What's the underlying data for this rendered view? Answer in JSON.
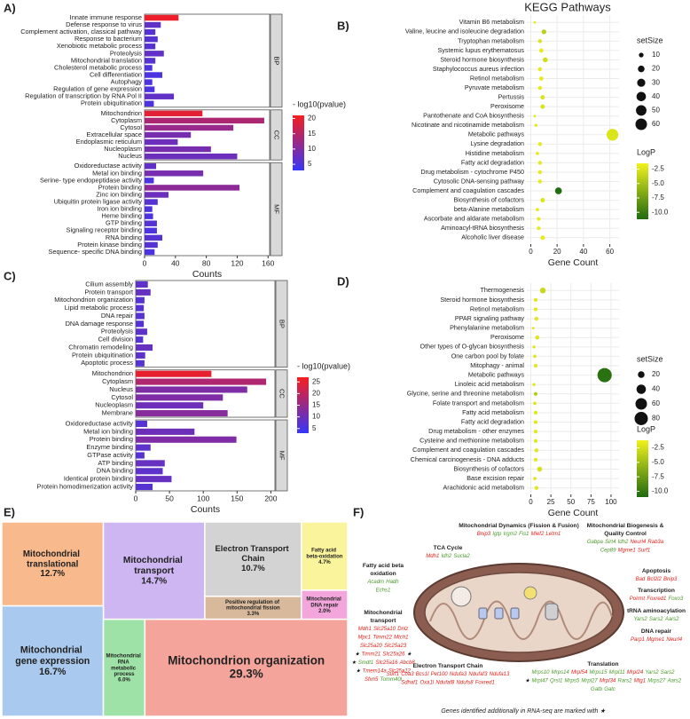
{
  "chart_data": [
    {
      "type": "faceted_bar",
      "panel_label": "A)",
      "xlabel": "Counts",
      "xlim": [
        0,
        162
      ],
      "xticks": [
        0,
        40,
        80,
        120,
        160
      ],
      "facets": [
        {
          "name": "BP",
          "categories": [
            "Innate immune response",
            "Defense response to virus",
            "Complement activation, classical pathway",
            "Response to bacterium",
            "Xenobiotic metabolic process",
            "Proteolysis",
            "Mitochondrial translation",
            "Cholesterol metabolic process",
            "Cell differentiation",
            "Autophagy",
            "Regulation of gene expression",
            "Regulation of transcription by RNA Pol II",
            "Protein ubiquitination"
          ],
          "values": [
            44,
            21,
            14,
            17,
            14,
            25,
            14,
            10,
            23,
            10,
            13,
            38,
            12
          ],
          "color_values": [
            20,
            7,
            6,
            6,
            6,
            7,
            6,
            5,
            5,
            5,
            5,
            7,
            5
          ]
        },
        {
          "name": "CC",
          "categories": [
            "Mitochondrion",
            "Cytoplasm",
            "Cytosol",
            "Extracellular space",
            "Endoplasmic reticulum",
            "Nucleoplasm",
            "Nucleus"
          ],
          "values": [
            75,
            155,
            115,
            60,
            43,
            86,
            120
          ],
          "color_values": [
            19,
            14,
            12,
            9,
            8,
            9,
            8
          ]
        },
        {
          "name": "MF",
          "categories": [
            "Oxidoreductase activity",
            "Metal ion binding",
            "Serine- type endopeptidase activity",
            "Protein binding",
            "Zinc ion binding",
            "Ubiquitin protein ligase activity",
            "Iron ion binding",
            "Heme binding",
            "GTP binding",
            "Signaling receptor binding",
            "RNA binding",
            "Protein kinase binding",
            "Sequence- specific DNA binding"
          ],
          "values": [
            15,
            76,
            12,
            123,
            31,
            17,
            10,
            11,
            16,
            16,
            23,
            17,
            13
          ],
          "color_values": [
            7,
            9,
            5,
            11,
            8,
            6,
            5,
            5,
            6,
            5,
            6,
            6,
            5
          ]
        }
      ],
      "colorbar": {
        "title": "- log10(pvalue)",
        "lim": [
          3,
          21
        ],
        "ticks": [
          5,
          10,
          15,
          20
        ],
        "colors": [
          "#3636f7",
          "#f71e1e"
        ]
      }
    },
    {
      "type": "dot",
      "panel_label": "B)",
      "title": "KEGG Pathways",
      "xlabel": "Gene Count",
      "xlim": [
        -3,
        67
      ],
      "xticks": [
        0,
        20,
        40,
        60
      ],
      "categories": [
        "Vitamin B6 metabolism",
        "Valine, leucine and isoleucine degradation",
        "Tryptophan metabolism",
        "Systemic lupus erythematosus",
        "Steroid hormone biosynthesis",
        "Staphylococcus aureus infection",
        "Retinol metabolism",
        "Pyruvate metabolism",
        "Pertussis",
        "Peroxisome",
        "Pantothenate and CoA biosynthesis",
        "Nicotinate and nicotinamide metabolism",
        "Metabolic pathways",
        "Lysine degradation",
        "Histidine metabolism",
        "Fatty acid degradation",
        "Drug metabolism - cytochrome P450",
        "Cytosolic DNA-sensing pathway",
        "Complement and coagulation cascades",
        "Biosynthesis of cofactors",
        "beta-Alanine metabolism",
        "Ascorbate and aldarate metabolism",
        "Aminoacyl-tRNA biosynthesis",
        "Alcoholic liver disease"
      ],
      "values": [
        3,
        10,
        7,
        8,
        11,
        7,
        8,
        7,
        9,
        9,
        3,
        4,
        62,
        7,
        5,
        7,
        7,
        7,
        21,
        9,
        5,
        6,
        6,
        9
      ],
      "logp": [
        -2,
        -4,
        -2.5,
        -2,
        -3,
        -2,
        -2,
        -2,
        -2.5,
        -2.5,
        -2,
        -2,
        -2.5,
        -2,
        -2,
        -2,
        -2,
        -2,
        -11,
        -2.5,
        -2,
        -2,
        -2,
        -2
      ],
      "size_legend": {
        "title": "setSize",
        "values": [
          10,
          20,
          30,
          40,
          50,
          60
        ]
      },
      "colorbar": {
        "title": "LogP",
        "lim": [
          -11.2,
          -1.5
        ],
        "ticks": [
          -2.5,
          {
            "value": -5,
            "label": "-5.0"
          },
          -7.5,
          {
            "value": -10,
            "label": "-10.0"
          }
        ],
        "colors": [
          "#1f6a10",
          "#f2f21c"
        ]
      }
    },
    {
      "type": "faceted_bar",
      "panel_label": "C)",
      "xlabel": "Counts",
      "xlim": [
        0,
        206
      ],
      "xticks": [
        0,
        50,
        100,
        150,
        200
      ],
      "facets": [
        {
          "name": "BP",
          "categories": [
            "Cilium assembly",
            "Protein transport",
            "Mitochondrion organization",
            "Lipid metabolic process",
            "DNA repair",
            "DNA damage response",
            "Proteolysis",
            "Cell division",
            "Chromatin remodeling",
            "Protein ubiquitination",
            "Apoptotic process"
          ],
          "values": [
            18,
            22,
            13,
            12,
            13,
            12,
            17,
            11,
            25,
            14,
            13
          ],
          "color_values": [
            8,
            9,
            7,
            7,
            7,
            7,
            8,
            7,
            9,
            8,
            7
          ]
        },
        {
          "name": "CC",
          "categories": [
            "Mitochondrion",
            "Cytoplasm",
            "Nucleus",
            "Cytosol",
            "Nucleoplasm",
            "Membrane"
          ],
          "values": [
            112,
            193,
            165,
            129,
            100,
            136
          ],
          "color_values": [
            25,
            18,
            12,
            12,
            10,
            13
          ]
        },
        {
          "name": "MF",
          "categories": [
            "Oxidoreductase activity",
            "Metal ion binding",
            "Protein binding",
            "Enzyme binding",
            "GTPase activity",
            "ATP binding",
            "DNA binding",
            "Identical protein binding",
            "Protein homodimerization activity"
          ],
          "values": [
            17,
            87,
            149,
            22,
            13,
            43,
            40,
            53,
            25
          ],
          "color_values": [
            7,
            10,
            12,
            8,
            7,
            9,
            8,
            9,
            7
          ]
        }
      ],
      "colorbar": {
        "title": "- log10(pvalue)",
        "lim": [
          3,
          27
        ],
        "ticks": [
          5,
          10,
          15,
          20,
          25
        ],
        "colors": [
          "#3636f7",
          "#f71e1e"
        ]
      }
    },
    {
      "type": "dot",
      "panel_label": "D)",
      "xlabel": "Gene Count",
      "xlim": [
        -5,
        110
      ],
      "xticks": [
        0,
        25,
        50,
        75,
        100
      ],
      "categories": [
        "Thermogenesis",
        "Steroid hormone biosynthesis",
        "Retinol metabolism",
        "PPAR signaling pathway",
        "Phenylalanine metabolism",
        "Peroxisome",
        "Other types of O-glycan biosynthesis",
        "One carbon pool by folate",
        "Mitophagy - animal",
        "Metabolic pathways",
        "Linoleic acid metabolism",
        "Glycine, serine and threonine metabolism",
        "Folate transport and metabolism",
        "Fatty acid metabolism",
        "Fatty acid degradation",
        "Drug metabolism - other enzymes",
        "Cysteine and methionine metabolism",
        "Complement and coagulation cascades",
        "Chemical carcinogenesis - DNA adducts",
        "Biosynthesis of cofactors",
        "Base excision repair",
        "Arachidonic acid metabolism"
      ],
      "values": [
        15,
        6,
        6,
        7,
        3,
        8,
        4,
        5,
        6,
        92,
        4,
        6,
        5,
        6,
        6,
        6,
        6,
        7,
        6,
        11,
        5,
        7
      ],
      "logp": [
        -3,
        -2,
        -2,
        -2,
        -2,
        -2,
        -2,
        -2,
        -2,
        -10.5,
        -2,
        -4,
        -2,
        -2,
        -2,
        -2,
        -2,
        -2,
        -2,
        -2.5,
        -2,
        -2
      ],
      "size_legend": {
        "title": "setSize",
        "values": [
          20,
          40,
          60,
          80
        ]
      },
      "colorbar": {
        "title": "LogP",
        "lim": [
          -11,
          -1.2
        ],
        "ticks": [
          -2.5,
          {
            "value": -5,
            "label": "-5.0"
          },
          -7.5,
          {
            "value": -10,
            "label": "-10.0"
          }
        ],
        "colors": [
          "#1f6a10",
          "#f2f21c"
        ]
      }
    },
    {
      "type": "treemap",
      "panel_label": "E)",
      "labels": [
        "Mitochondrial translational",
        "Mitochondrial transport",
        "Electron Transport Chain",
        "Fatty acid beta-oxidation",
        "Positive regulation of mitochondrial fission",
        "Mitochondrial DNA repair",
        "Mitochondrial gene expression",
        "Mitochondrial RNA metabolic process",
        "Mitochondrion organization"
      ],
      "values": [
        12.7,
        14.7,
        10.7,
        4.7,
        3.3,
        2.0,
        16.7,
        6.0,
        29.3
      ],
      "value_labels": [
        "12.7%",
        "14.7%",
        "10.7%",
        "4.7%",
        "3.3%",
        "2.0%",
        "16.7%",
        "6.0%",
        "29.3%"
      ],
      "colors": [
        "#f8b98c",
        "#cdb6f2",
        "#d3d3d3",
        "#faf49c",
        "#d8b99b",
        "#f3a6dc",
        "#a9c9ee",
        "#9fe2a7",
        "#f5a49b"
      ]
    }
  ],
  "diagram": {
    "panel_label": "F)",
    "palette": {
      "r": "#e3231c",
      "g": "#4a9a2b",
      "k": "#111111"
    },
    "groups": [
      {
        "title": [
          "TCA Cycle"
        ],
        "genes": [
          [
            [
              "Mdh1",
              "r"
            ],
            [
              "Idh2",
              "g"
            ],
            [
              "Sucla2",
              "g"
            ]
          ]
        ]
      },
      {
        "title": [
          "Mitochondrial Dynamics (Fission & Fusion)"
        ],
        "genes": [
          [
            [
              "Bnip3",
              "r"
            ],
            [
              "Igtp",
              "g"
            ],
            [
              "Irgm2",
              "g"
            ],
            [
              "Fis1",
              "g"
            ],
            [
              "Mief2",
              "r"
            ],
            [
              "Letm1",
              "r"
            ]
          ]
        ]
      },
      {
        "title": [
          "Mitochondrial Biogenesis &",
          "Quality Control"
        ],
        "genes": [
          [
            [
              "Gabpa",
              "g"
            ],
            [
              "Sirt4",
              "g"
            ],
            [
              "Idh2",
              "g"
            ],
            [
              "Neurl4",
              "r"
            ],
            [
              "Rab3a",
              "r"
            ]
          ],
          [
            [
              "Cep89",
              "g"
            ],
            [
              "Mgme1",
              "r"
            ],
            [
              "Surf1",
              "r"
            ]
          ]
        ]
      },
      {
        "title": [
          "Fatty acid beta",
          "oxidation"
        ],
        "genes": [
          [
            [
              "Acadm",
              "g"
            ],
            [
              "Hadh",
              "g"
            ]
          ],
          [
            [
              "Echs1",
              "g"
            ]
          ]
        ]
      },
      {
        "title": [
          "Apoptosis"
        ],
        "genes": [
          [
            [
              "Bad",
              "r"
            ],
            [
              "Bcl2l2",
              "r"
            ],
            [
              "Bnip3",
              "r"
            ]
          ]
        ]
      },
      {
        "title": [
          "Transcription"
        ],
        "genes": [
          [
            [
              "Polrmt",
              "r"
            ],
            [
              "Foxred1",
              "r"
            ],
            [
              "Foxo3",
              "g"
            ]
          ]
        ]
      },
      {
        "title": [
          "tRNA aminoacylation"
        ],
        "genes": [
          [
            [
              "Yars2",
              "g"
            ],
            [
              "Sars2",
              "g"
            ],
            [
              "Aars2",
              "g"
            ]
          ]
        ]
      },
      {
        "title": [
          "DNA repair"
        ],
        "genes": [
          [
            [
              "Parp1",
              "r"
            ],
            [
              "Mgme1",
              "r"
            ],
            [
              "Neurl4",
              "r"
            ]
          ]
        ]
      },
      {
        "title": [
          "Mitochondrial",
          "transport"
        ],
        "genes": [
          [
            [
              "Mdh1",
              "r"
            ],
            [
              "Slc25a10",
              "r"
            ],
            [
              "Dnlz",
              "r"
            ]
          ],
          [
            [
              "Mpc1",
              "r"
            ],
            [
              "Timm22",
              "r"
            ],
            [
              "Mtch1",
              "r"
            ]
          ],
          [
            [
              "Slc25a20",
              "r"
            ],
            [
              "Slc25a23",
              "r"
            ]
          ],
          [
            [
              "★",
              "k"
            ],
            [
              "Timm21",
              "r"
            ],
            [
              "Slc25a26",
              "r"
            ],
            [
              "★",
              "k"
            ]
          ],
          [
            [
              "★",
              "k"
            ],
            [
              "Smdt1",
              "g"
            ],
            [
              "Slc25a16",
              "r"
            ],
            [
              "Abcb8",
              "r"
            ]
          ],
          [
            [
              "★",
              "k"
            ],
            [
              "Tmem14a",
              "r"
            ],
            [
              "Slc25a12",
              "r"
            ]
          ],
          [
            [
              "Sfxn5",
              "r"
            ],
            [
              "Tomm40l",
              "g"
            ]
          ]
        ]
      },
      {
        "title": [
          "Electron Transport Chain"
        ],
        "genes": [
          [
            [
              "Surf1",
              "r"
            ],
            [
              "Coa3",
              "r"
            ],
            [
              "Bcs1l",
              "r"
            ],
            [
              "Pet100",
              "r"
            ],
            [
              "Ndufa3",
              "r"
            ],
            [
              "Ndufaf3",
              "r"
            ],
            [
              "Ndufa13",
              "r"
            ]
          ],
          [
            [
              "Sdhaf1",
              "r"
            ],
            [
              "Oxa1l",
              "r"
            ],
            [
              "Ndufaf8",
              "r"
            ],
            [
              "Ndufs8",
              "r"
            ],
            [
              "Foxred1",
              "r"
            ]
          ]
        ]
      },
      {
        "title": [
          "Translation"
        ],
        "genes": [
          [
            [
              "Mrps10",
              "g"
            ],
            [
              "Mrps14",
              "g"
            ],
            [
              "Mrpl54",
              "r"
            ],
            [
              "Mrps15",
              "g"
            ],
            [
              "Mrpl11",
              "g"
            ],
            [
              "Mrpl24",
              "r"
            ],
            [
              "Yars2",
              "g"
            ],
            [
              "Sars2",
              "g"
            ]
          ],
          [
            [
              "★",
              "k"
            ],
            [
              "Mrpl47",
              "g"
            ],
            [
              "Qrsl1",
              "g"
            ],
            [
              "Mrps5",
              "g"
            ],
            [
              "Mrpl27",
              "g"
            ],
            [
              "Mrpl34",
              "r"
            ],
            [
              "Rars2",
              "g"
            ],
            [
              "Mtg1",
              "r"
            ],
            [
              "Mrps27",
              "g"
            ],
            [
              "Aars2",
              "g"
            ]
          ],
          [
            [
              "Gatb",
              "g"
            ],
            [
              "Gatc",
              "g"
            ]
          ]
        ]
      }
    ],
    "footnote": "Genes identified additionally in RNA-seq are marked with ★"
  }
}
